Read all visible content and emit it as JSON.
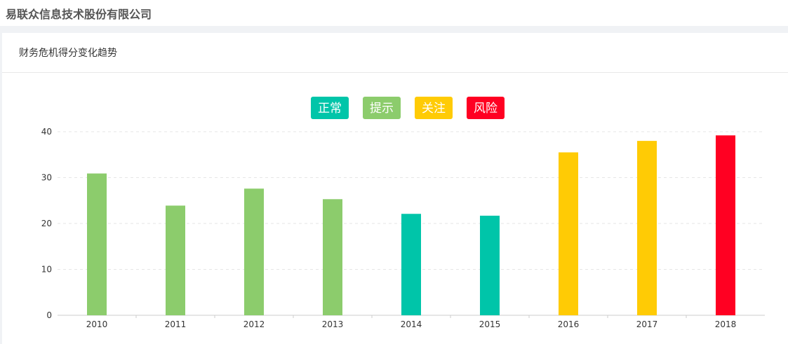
{
  "header": {
    "company_name": "易联众信息技术股份有限公司"
  },
  "card": {
    "title": "财务危机得分变化趋势"
  },
  "legend": [
    {
      "label": "正常",
      "color": "#00c5a9"
    },
    {
      "label": "提示",
      "color": "#8ccc6c"
    },
    {
      "label": "关注",
      "color": "#ffcb05"
    },
    {
      "label": "风险",
      "color": "#ff0022"
    }
  ],
  "chart_data": {
    "type": "bar",
    "categories": [
      "2010",
      "2011",
      "2012",
      "2013",
      "2014",
      "2015",
      "2016",
      "2017",
      "2018"
    ],
    "values": [
      30.9,
      23.9,
      27.6,
      25.3,
      22.1,
      21.7,
      35.5,
      38,
      39.2
    ],
    "levels": [
      "提示",
      "提示",
      "提示",
      "提示",
      "正常",
      "正常",
      "关注",
      "关注",
      "风险"
    ],
    "ylim": [
      0,
      40
    ],
    "yticks": [
      0,
      10,
      20,
      30,
      40
    ],
    "legend_position": "top-center",
    "grid": true
  }
}
